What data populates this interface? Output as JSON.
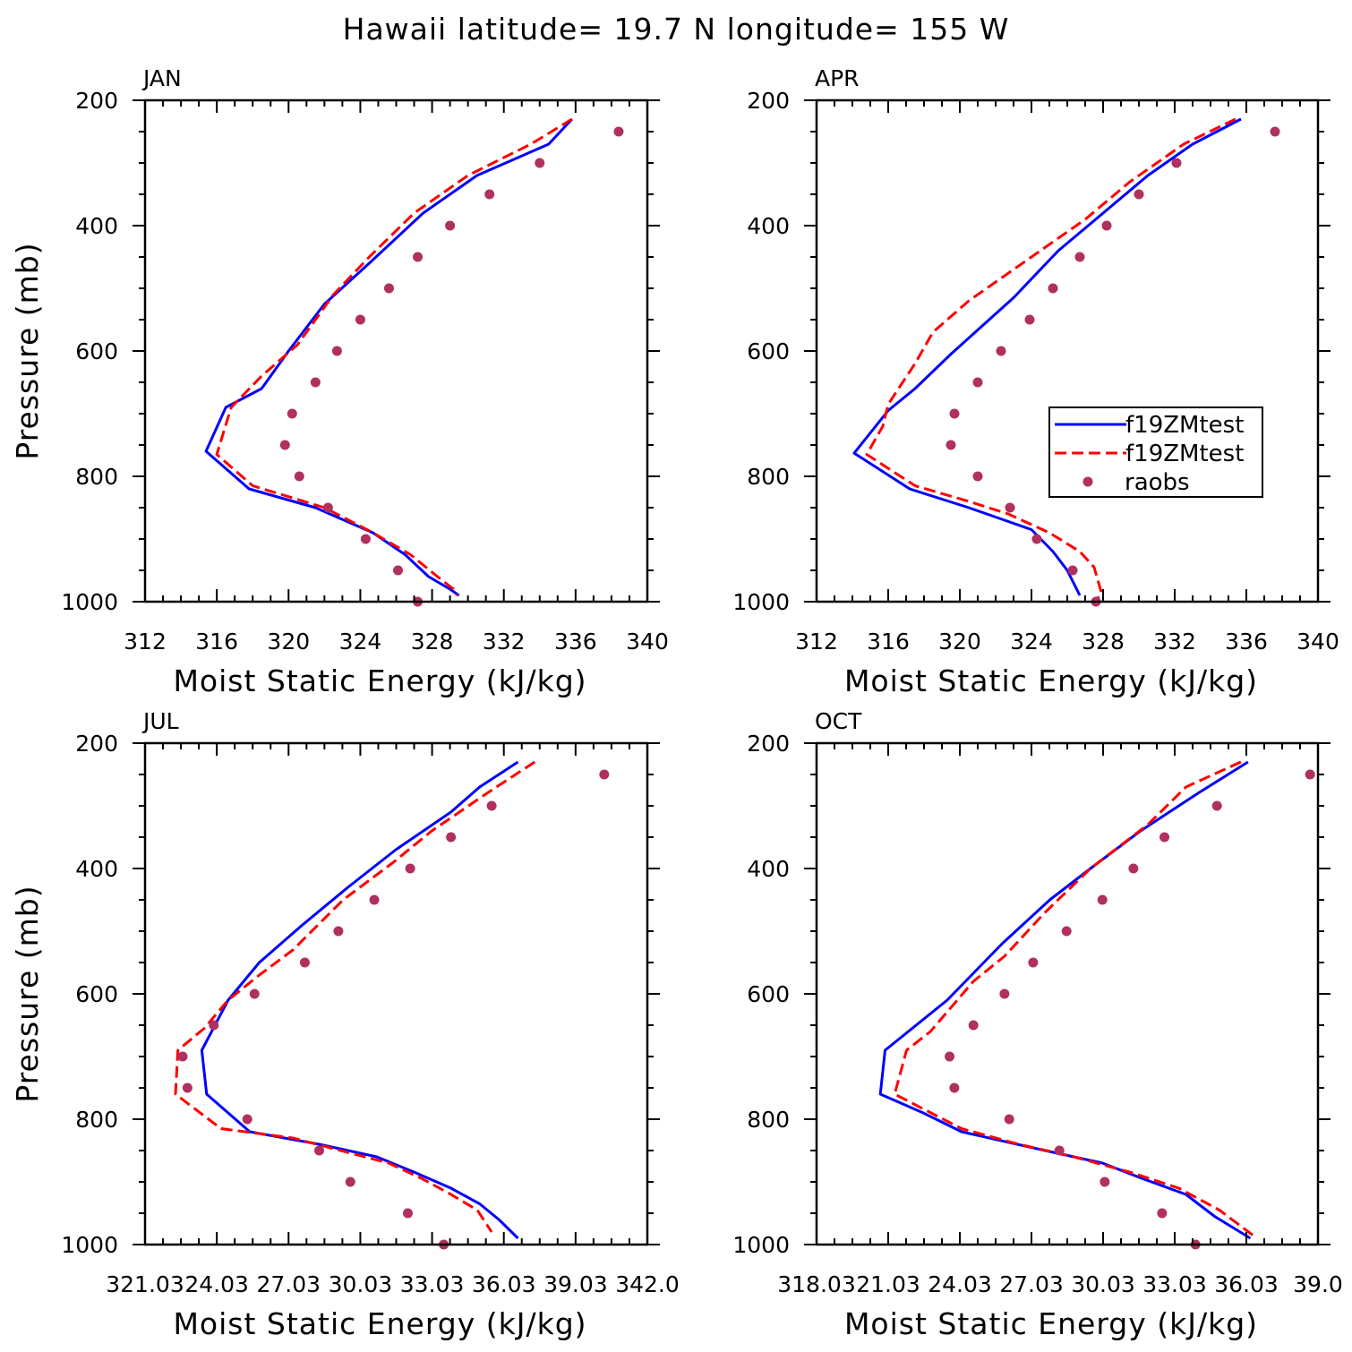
{
  "figure_title": "Hawaii  latitude= 19.7 N longitude= 155 W",
  "colors": {
    "model_blue": "#0000ff",
    "model_red": "#ff0000",
    "raobs": "#b03060",
    "axes": "#000000"
  },
  "legend": {
    "entries": [
      {
        "label": "f19ZMtest",
        "style": "solid",
        "color": "#0000ff"
      },
      {
        "label": "f19ZMtest",
        "style": "dashed",
        "color": "#ff0000"
      },
      {
        "label": "raobs",
        "style": "marker",
        "color": "#b03060"
      }
    ],
    "panel": "APR",
    "placement": "lower-right"
  },
  "chart_data": [
    {
      "type": "line",
      "panel": "JAN",
      "xlabel": "Moist Static Energy (kJ/kg)",
      "ylabel": "Pressure (mb)",
      "xlim": [
        312,
        340
      ],
      "ylim": [
        200,
        1000
      ],
      "y_inverted": true,
      "xticks": [
        312,
        316,
        320,
        324,
        328,
        332,
        336,
        340
      ],
      "xtick_labels": [
        "312",
        "316",
        "320",
        "324",
        "328",
        "332",
        "336",
        "340"
      ],
      "yticks": [
        200,
        400,
        600,
        800,
        1000
      ],
      "ytick_labels": [
        "200",
        "400",
        "600",
        "800",
        "1000"
      ],
      "series": [
        {
          "name": "f19ZMtest",
          "style": "solid",
          "color": "#0000ff",
          "points": [
            [
              335.8,
              230
            ],
            [
              334.5,
              270
            ],
            [
              330.5,
              320
            ],
            [
              327.5,
              380
            ],
            [
              324.5,
              460
            ],
            [
              322,
              525
            ],
            [
              320,
              600
            ],
            [
              318.5,
              660
            ],
            [
              316.5,
              690
            ],
            [
              315.4,
              760
            ],
            [
              317.8,
              820
            ],
            [
              321.5,
              850
            ],
            [
              324.7,
              890
            ],
            [
              326.5,
              925
            ],
            [
              327.8,
              960
            ],
            [
              329,
              980
            ],
            [
              329.5,
              990
            ]
          ]
        },
        {
          "name": "f19ZMtest",
          "style": "dashed",
          "color": "#ff0000",
          "points": [
            [
              335.8,
              230
            ],
            [
              333.5,
              270
            ],
            [
              330,
              320
            ],
            [
              327,
              380
            ],
            [
              324.5,
              450
            ],
            [
              322.5,
              510
            ],
            [
              320.5,
              590
            ],
            [
              318.5,
              640
            ],
            [
              316.8,
              690
            ],
            [
              316,
              765
            ],
            [
              318,
              815
            ],
            [
              322,
              850
            ],
            [
              324.7,
              890
            ],
            [
              326.8,
              925
            ],
            [
              328.3,
              960
            ],
            [
              329.2,
              980
            ],
            [
              329.4,
              990
            ]
          ]
        },
        {
          "name": "raobs",
          "style": "marker",
          "color": "#b03060",
          "points": [
            [
              338.4,
              250
            ],
            [
              334,
              300
            ],
            [
              331.2,
              350
            ],
            [
              329,
              400
            ],
            [
              327.2,
              450
            ],
            [
              325.6,
              500
            ],
            [
              324,
              550
            ],
            [
              322.7,
              600
            ],
            [
              321.5,
              650
            ],
            [
              320.2,
              700
            ],
            [
              319.8,
              750
            ],
            [
              320.6,
              800
            ],
            [
              322.2,
              850
            ],
            [
              324.3,
              900
            ],
            [
              326.1,
              950
            ],
            [
              327.2,
              1000
            ]
          ]
        }
      ]
    },
    {
      "type": "line",
      "panel": "APR",
      "xlabel": "Moist Static Energy (kJ/kg)",
      "ylabel": "",
      "xlim": [
        312,
        340
      ],
      "ylim": [
        200,
        1000
      ],
      "y_inverted": true,
      "xticks": [
        312,
        316,
        320,
        324,
        328,
        332,
        336,
        340
      ],
      "xtick_labels": [
        "312",
        "316",
        "320",
        "324",
        "328",
        "332",
        "336",
        "340"
      ],
      "yticks": [
        200,
        400,
        600,
        800,
        1000
      ],
      "ytick_labels": [
        "200",
        "400",
        "600",
        "800",
        "1000"
      ],
      "series": [
        {
          "name": "f19ZMtest",
          "style": "solid",
          "color": "#0000ff",
          "points": [
            [
              335.7,
              230
            ],
            [
              333,
              270
            ],
            [
              330.5,
              320
            ],
            [
              328,
              380
            ],
            [
              325.5,
              440
            ],
            [
              323,
              515
            ],
            [
              319.5,
              605
            ],
            [
              317.5,
              660
            ],
            [
              316,
              695
            ],
            [
              314.1,
              763
            ],
            [
              317.2,
              820
            ],
            [
              320.5,
              850
            ],
            [
              324,
              885
            ],
            [
              325.2,
              920
            ],
            [
              326,
              950
            ],
            [
              326.7,
              990
            ]
          ]
        },
        {
          "name": "f19ZMtest",
          "style": "dashed",
          "color": "#ff0000",
          "points": [
            [
              335.4,
              230
            ],
            [
              332.5,
              270
            ],
            [
              329.5,
              330
            ],
            [
              327,
              390
            ],
            [
              324,
              450
            ],
            [
              320.5,
              520
            ],
            [
              318.5,
              570
            ],
            [
              317.5,
              620
            ],
            [
              316,
              685
            ],
            [
              315.7,
              720
            ],
            [
              314.8,
              765
            ],
            [
              317.5,
              815
            ],
            [
              320.5,
              840
            ],
            [
              322.7,
              860
            ],
            [
              325,
              890
            ],
            [
              326.7,
              920
            ],
            [
              327.5,
              945
            ],
            [
              327.9,
              985
            ],
            [
              327.7,
              995
            ]
          ]
        },
        {
          "name": "raobs",
          "style": "marker",
          "color": "#b03060",
          "points": [
            [
              337.6,
              250
            ],
            [
              332.1,
              300
            ],
            [
              330,
              350
            ],
            [
              328.2,
              400
            ],
            [
              326.7,
              450
            ],
            [
              325.2,
              500
            ],
            [
              323.9,
              550
            ],
            [
              322.3,
              600
            ],
            [
              321,
              650
            ],
            [
              319.7,
              700
            ],
            [
              319.5,
              750
            ],
            [
              321,
              800
            ],
            [
              322.8,
              850
            ],
            [
              324.3,
              900
            ],
            [
              326.3,
              950
            ],
            [
              327.6,
              1000
            ]
          ]
        }
      ]
    },
    {
      "type": "line",
      "panel": "JUL",
      "xlabel": "Moist Static Energy (kJ/kg)",
      "ylabel": "Pressure (mb)",
      "xlim": [
        321.03,
        342.0
      ],
      "ylim": [
        200,
        1000
      ],
      "y_inverted": true,
      "xticks": [
        321.03,
        324.03,
        327.03,
        330.03,
        333.03,
        336.03,
        339.03,
        342.0
      ],
      "xtick_labels": [
        "321.03",
        "24.03",
        "27.03",
        "30.03",
        "33.03",
        "36.03",
        "39.03",
        "342.0"
      ],
      "yticks": [
        200,
        400,
        600,
        800,
        1000
      ],
      "ytick_labels": [
        "200",
        "400",
        "600",
        "800",
        "1000"
      ],
      "series": [
        {
          "name": "f19ZMtest",
          "style": "solid",
          "color": "#0000ff",
          "points": [
            [
              336.6,
              230
            ],
            [
              335,
              270
            ],
            [
              333.8,
              310
            ],
            [
              331.5,
              370
            ],
            [
              329.5,
              430
            ],
            [
              327.6,
              490
            ],
            [
              325.8,
              550
            ],
            [
              324.5,
              610
            ],
            [
              323.4,
              690
            ],
            [
              323.6,
              760
            ],
            [
              325.4,
              820
            ],
            [
              328.3,
              840
            ],
            [
              330.7,
              860
            ],
            [
              332.3,
              885
            ],
            [
              333.8,
              910
            ],
            [
              335,
              935
            ],
            [
              335.8,
              960
            ],
            [
              336.6,
              990
            ]
          ]
        },
        {
          "name": "f19ZMtest",
          "style": "dashed",
          "color": "#ff0000",
          "points": [
            [
              337.3,
              230
            ],
            [
              335.3,
              280
            ],
            [
              333,
              340
            ],
            [
              331.4,
              390
            ],
            [
              329.3,
              450
            ],
            [
              327.2,
              530
            ],
            [
              325.8,
              570
            ],
            [
              324.5,
              610
            ],
            [
              323.5,
              655
            ],
            [
              322.4,
              690
            ],
            [
              322.3,
              760
            ],
            [
              324.2,
              815
            ],
            [
              327.2,
              830
            ],
            [
              329.2,
              850
            ],
            [
              331.2,
              870
            ],
            [
              332.6,
              895
            ],
            [
              333.8,
              920
            ],
            [
              334.9,
              945
            ],
            [
              335.5,
              980
            ]
          ]
        },
        {
          "name": "raobs",
          "style": "marker",
          "color": "#b03060",
          "points": [
            [
              340.2,
              250
            ],
            [
              335.5,
              300
            ],
            [
              333.8,
              350
            ],
            [
              332.1,
              400
            ],
            [
              330.6,
              450
            ],
            [
              329.1,
              500
            ],
            [
              327.7,
              550
            ],
            [
              325.6,
              600
            ],
            [
              323.9,
              650
            ],
            [
              322.6,
              700
            ],
            [
              322.8,
              750
            ],
            [
              325.3,
              800
            ],
            [
              328.3,
              850
            ],
            [
              329.6,
              900
            ],
            [
              332,
              950
            ],
            [
              333.5,
              1000
            ]
          ]
        }
      ]
    },
    {
      "type": "line",
      "panel": "OCT",
      "xlabel": "Moist Static Energy (kJ/kg)",
      "ylabel": "",
      "xlim": [
        318.03,
        339.03
      ],
      "ylim": [
        200,
        1000
      ],
      "y_inverted": true,
      "xticks": [
        318.03,
        321.03,
        324.03,
        327.03,
        330.03,
        333.03,
        336.03,
        339.03
      ],
      "xtick_labels": [
        "318.03",
        "21.03",
        "24.03",
        "27.03",
        "30.03",
        "33.03",
        "36.03",
        "39.0"
      ],
      "yticks": [
        200,
        400,
        600,
        800,
        1000
      ],
      "ytick_labels": [
        "200",
        "400",
        "600",
        "800",
        "1000"
      ],
      "series": [
        {
          "name": "f19ZMtest",
          "style": "solid",
          "color": "#0000ff",
          "points": [
            [
              336.1,
              230
            ],
            [
              334,
              280
            ],
            [
              331.6,
              340
            ],
            [
              329.5,
              400
            ],
            [
              327.8,
              450
            ],
            [
              325.8,
              520
            ],
            [
              323.5,
              610
            ],
            [
              320.9,
              690
            ],
            [
              320.7,
              760
            ],
            [
              322.5,
              790
            ],
            [
              324.1,
              820
            ],
            [
              327.6,
              850
            ],
            [
              330,
              870
            ],
            [
              331.7,
              895
            ],
            [
              333.5,
              920
            ],
            [
              334.7,
              955
            ],
            [
              336.2,
              990
            ]
          ]
        },
        {
          "name": "f19ZMtest",
          "style": "dashed",
          "color": "#ff0000",
          "points": [
            [
              335.8,
              230
            ],
            [
              333.5,
              270
            ],
            [
              331.9,
              330
            ],
            [
              329.5,
              400
            ],
            [
              327.6,
              470
            ],
            [
              325.9,
              540
            ],
            [
              324.6,
              580
            ],
            [
              322.8,
              660
            ],
            [
              321.8,
              690
            ],
            [
              321.3,
              760
            ],
            [
              324.1,
              815
            ],
            [
              326.5,
              840
            ],
            [
              328.8,
              860
            ],
            [
              331.2,
              885
            ],
            [
              333.2,
              910
            ],
            [
              334.9,
              945
            ],
            [
              336.3,
              985
            ]
          ]
        },
        {
          "name": "raobs",
          "style": "marker",
          "color": "#b03060",
          "points": [
            [
              338.7,
              250
            ],
            [
              334.8,
              300
            ],
            [
              332.6,
              350
            ],
            [
              331.3,
              400
            ],
            [
              330,
              450
            ],
            [
              328.5,
              500
            ],
            [
              327.1,
              550
            ],
            [
              325.9,
              600
            ],
            [
              324.6,
              650
            ],
            [
              323.6,
              700
            ],
            [
              323.8,
              750
            ],
            [
              326.1,
              800
            ],
            [
              328.2,
              850
            ],
            [
              330.1,
              900
            ],
            [
              332.5,
              950
            ],
            [
              333.9,
              1000
            ]
          ]
        }
      ]
    }
  ]
}
